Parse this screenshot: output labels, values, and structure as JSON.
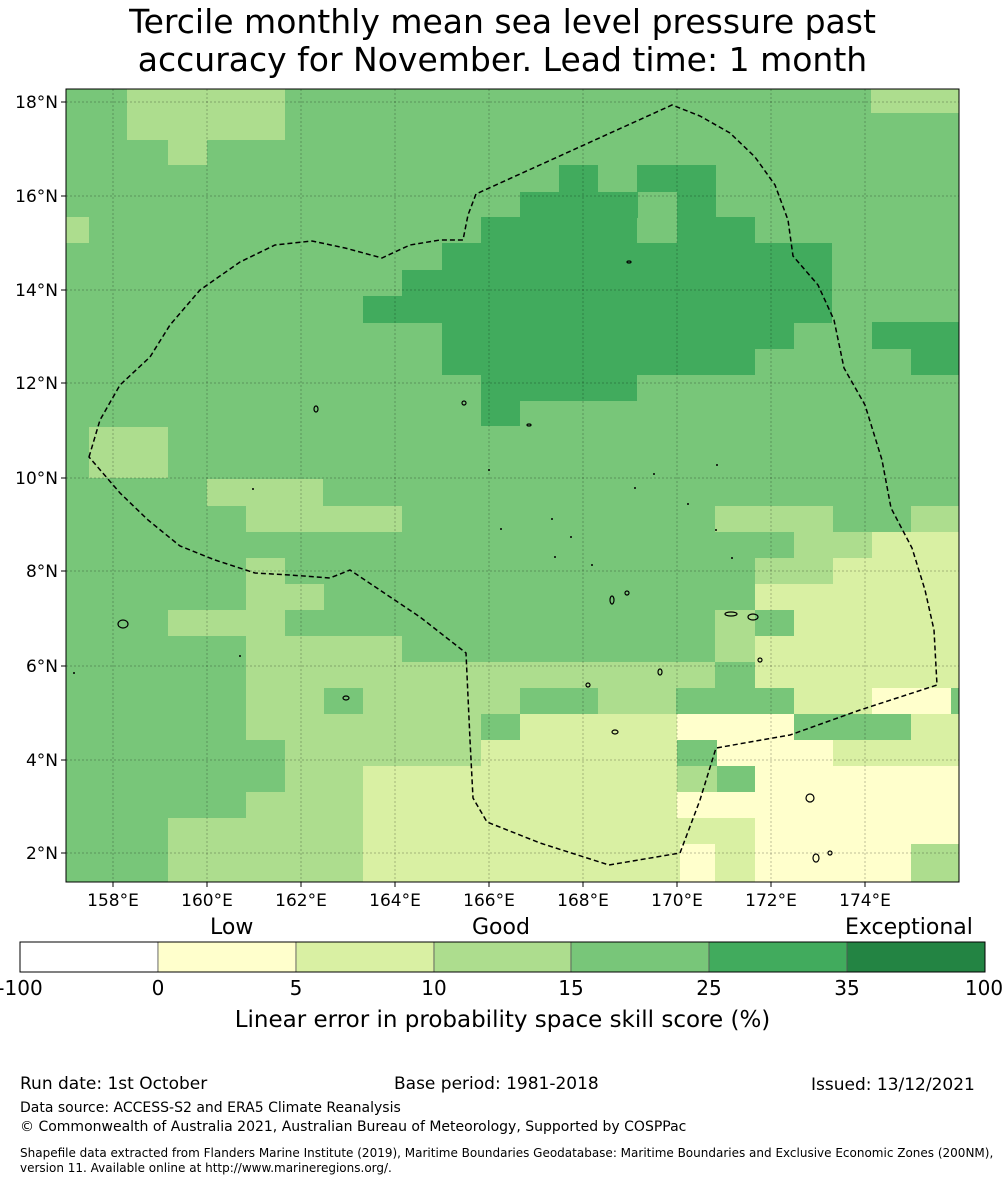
{
  "title": {
    "line1": "Tercile monthly mean sea level pressure past",
    "line2": "accuracy for November. Lead time: 1 month"
  },
  "map": {
    "lat_labels": [
      "18°N",
      "16°N",
      "14°N",
      "12°N",
      "10°N",
      "8°N",
      "6°N",
      "4°N",
      "2°N"
    ],
    "lon_labels": [
      "158°E",
      "160°E",
      "162°E",
      "164°E",
      "166°E",
      "168°E",
      "170°E",
      "172°E",
      "174°E"
    ],
    "lon_range": [
      157.0,
      176.0
    ],
    "lat_range": [
      1.4,
      18.3
    ],
    "boundary_style": "dashed black EEZ outline"
  },
  "colorbar": {
    "labels": {
      "low": "Low",
      "good": "Good",
      "exceptional": "Exceptional"
    },
    "ticks": [
      "-100",
      "0",
      "5",
      "10",
      "15",
      "25",
      "35",
      "100"
    ],
    "colors": [
      "#ffffff",
      "#ffffcc",
      "#d9f0a3",
      "#addd8e",
      "#78c679",
      "#41ab5d",
      "#238443"
    ],
    "title": "Linear error in probability space skill score (%)"
  },
  "footer": {
    "run_date": "Run date: 1st October",
    "base_period": "Base period: 1981-2018",
    "issued": "Issued: 13/12/2021",
    "data_source": "Data source: ACCESS-S2 and ERA5 Climate Reanalysis",
    "copyright": "© Commonwealth of Australia 2021, Australian Bureau of Meteorology, Supported by COSPPac",
    "shapefile": "Shapefile data extracted from Flanders Marine Institute (2019), Maritime Boundaries Geodatabase: Maritime Boundaries and Exclusive Economic Zones (200NM), version 11. Available online at http://www.marineregions.org/."
  }
}
